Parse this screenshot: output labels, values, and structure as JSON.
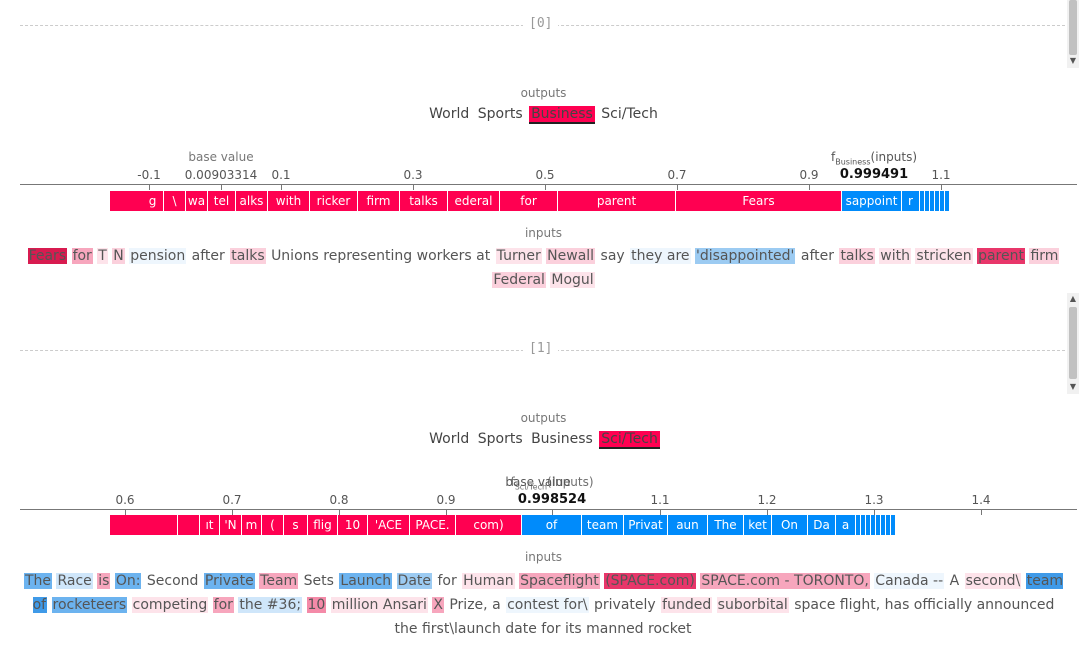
{
  "examples": [
    {
      "index_label": "[0]",
      "outputs_label": "outputs",
      "outputs": [
        "World",
        "Sports",
        "Business",
        "Sci/Tech"
      ],
      "selected_output": "Business",
      "base_value_label": "base value",
      "base_value": "0.00903314",
      "fx_label": "f",
      "fx_sub": "Business",
      "fx_suffix": "(inputs)",
      "fx_value": "0.999491",
      "ticks": [
        "-0.1",
        "0.1",
        "0.3",
        "0.5",
        "0.7",
        "0.9",
        "1.1"
      ],
      "force_pos_labels": [
        "g",
        "\\",
        "wa",
        "tel",
        "alks",
        "with",
        "ricker",
        "firm",
        "talks",
        "ederal",
        "for",
        "parent",
        "Fears"
      ],
      "force_neg_labels": [
        "sappoint",
        "r"
      ],
      "inputs_label": "inputs",
      "tokens": [
        {
          "t": "Fears",
          "c": "#d81b50"
        },
        {
          "t": "for",
          "c": "#f7a6bd"
        },
        {
          "t": "T",
          "c": "#fde3ea"
        },
        {
          "t": "N",
          "c": "#fbd0dc"
        },
        {
          "t": "pension",
          "c": "#eef6fd"
        },
        {
          "t": "after",
          "c": ""
        },
        {
          "t": "talks",
          "c": "#fbd0dc"
        },
        {
          "t": "Unions representing workers at",
          "c": ""
        },
        {
          "t": "Turner",
          "c": "#fde3ea"
        },
        {
          "t": "Newall",
          "c": "#fbd0dc"
        },
        {
          "t": "say",
          "c": ""
        },
        {
          "t": "they are",
          "c": "#eef6fd"
        },
        {
          "t": "'disappointed'",
          "c": "#9ccbf2"
        },
        {
          "t": "after",
          "c": ""
        },
        {
          "t": "talks",
          "c": "#fbd0dc"
        },
        {
          "t": "with",
          "c": "#fde3ea"
        },
        {
          "t": "stricken",
          "c": "#fde3ea"
        },
        {
          "t": "parent",
          "c": "#e8366a"
        },
        {
          "t": "firm",
          "c": "#fbd0dc"
        },
        {
          "t": "Federal",
          "c": "#fbd0dc"
        },
        {
          "t": "Mogul",
          "c": "#fde3ea"
        }
      ]
    },
    {
      "index_label": "[1]",
      "outputs_label": "outputs",
      "outputs": [
        "World",
        "Sports",
        "Business",
        "Sci/Tech"
      ],
      "selected_output": "Sci/Tech",
      "base_value_label": "base value",
      "fx_label": "f",
      "fx_sub": "Sci/Tech",
      "fx_suffix": "(inputs)",
      "fx_value": "0.998524",
      "ticks": [
        "0.6",
        "0.7",
        "0.8",
        "0.9",
        "1.1",
        "1.2",
        "1.3",
        "1.4"
      ],
      "force_pos_labels": [
        "",
        "",
        "ıt",
        "'N",
        "m",
        "(",
        "s",
        "flig",
        "10",
        "'ACE",
        "PACE.",
        "com)"
      ],
      "force_neg_labels": [
        "of",
        "team",
        "Privat",
        "aun",
        "The",
        "ket",
        "On",
        "Da",
        "a"
      ],
      "inputs_label": "inputs",
      "tokens": [
        {
          "t": "The",
          "c": "#6cb3ef"
        },
        {
          "t": "Race",
          "c": "#cfe6fa"
        },
        {
          "t": "is",
          "c": "#f7a6bd"
        },
        {
          "t": "On:",
          "c": "#6cb3ef"
        },
        {
          "t": "Second",
          "c": ""
        },
        {
          "t": "Private",
          "c": "#6cb3ef"
        },
        {
          "t": "Team",
          "c": "#f7a6bd"
        },
        {
          "t": "Sets",
          "c": ""
        },
        {
          "t": "Launch",
          "c": "#6cb3ef"
        },
        {
          "t": "Date",
          "c": "#9ccbf2"
        },
        {
          "t": "for",
          "c": ""
        },
        {
          "t": "Human",
          "c": "#fde3ea"
        },
        {
          "t": "Spaceflight",
          "c": "#f7a6bd"
        },
        {
          "t": "(SPACE.com)",
          "c": "#e8366a"
        },
        {
          "t": "SPACE.com - TORONTO,",
          "c": "#f7a6bd"
        },
        {
          "t": "Canada --",
          "c": "#eef6fd"
        },
        {
          "t": "A",
          "c": ""
        },
        {
          "t": "second\\",
          "c": "#fde3ea"
        },
        {
          "t": "team of",
          "c": "#3f9ae8"
        },
        {
          "t": "rocketeers",
          "c": "#6cb3ef"
        },
        {
          "t": "competing",
          "c": "#fde3ea"
        },
        {
          "t": "for",
          "c": "#f7a6bd"
        },
        {
          "t": "the #36;",
          "c": "#cfe6fa"
        },
        {
          "t": "10",
          "c": "#f48aa8"
        },
        {
          "t": "million Ansari",
          "c": "#fde3ea"
        },
        {
          "t": "X",
          "c": "#f7a6bd"
        },
        {
          "t": "Prize, a",
          "c": ""
        },
        {
          "t": "contest for\\",
          "c": "#eef6fd"
        },
        {
          "t": "privately",
          "c": ""
        },
        {
          "t": "funded",
          "c": "#fde3ea"
        },
        {
          "t": "suborbital",
          "c": "#fde3ea"
        },
        {
          "t": "space flight, has officially announced the first\\launch date for its manned rocket",
          "c": ""
        }
      ]
    }
  ]
}
